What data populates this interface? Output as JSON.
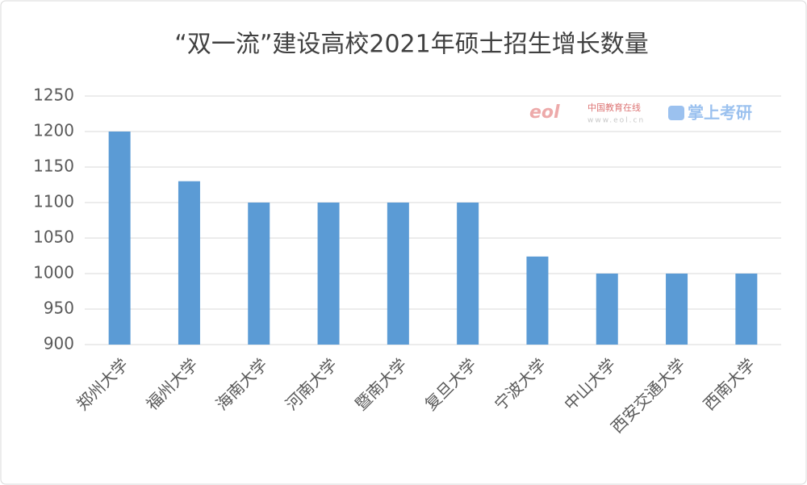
{
  "chart_data": {
    "type": "bar",
    "title": "“双一流”建设高校2021年硕士招生增长数量",
    "categories": [
      "郑州大学",
      "福州大学",
      "海南大学",
      "河南大学",
      "暨南大学",
      "复旦大学",
      "宁波大学",
      "中山大学",
      "西安交通大学",
      "西南大学"
    ],
    "values": [
      1200,
      1130,
      1100,
      1100,
      1100,
      1100,
      1024,
      1000,
      1000,
      1000
    ],
    "color": "#5b9bd5",
    "ylim": [
      900,
      1250
    ],
    "yticks": [
      900,
      950,
      1000,
      1050,
      1100,
      1150,
      1200,
      1250
    ],
    "grid": true,
    "watermark": {
      "logo": "eol",
      "site": "中国教育在线",
      "url": "www.eol.cn",
      "app": "掌上考研"
    }
  }
}
